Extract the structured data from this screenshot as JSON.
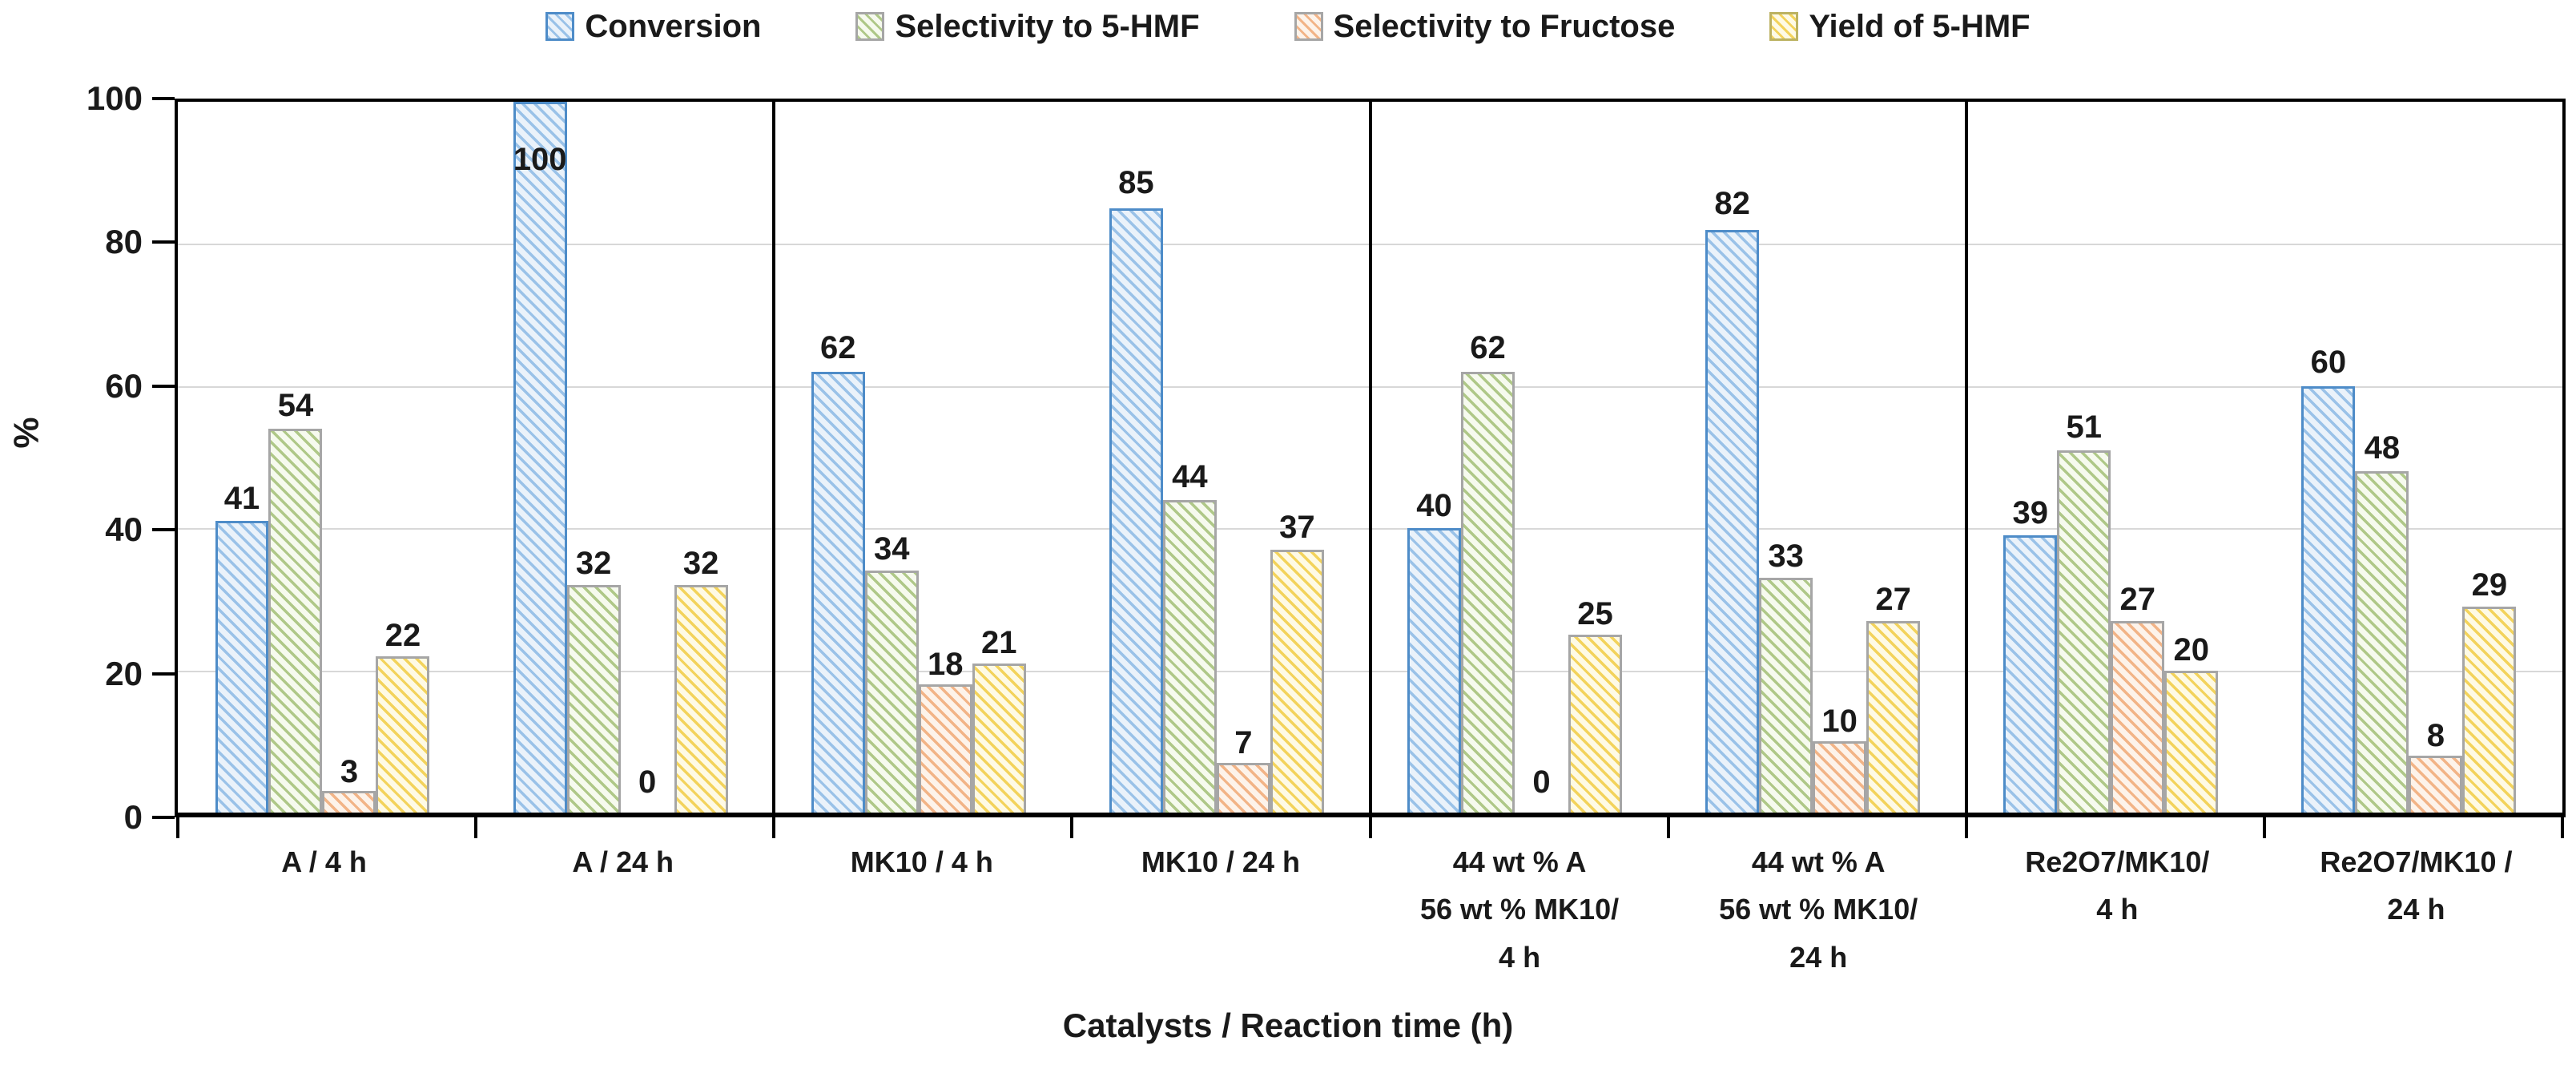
{
  "figure": {
    "background": "#FFFFFF",
    "text_color": "#1a1a1a",
    "gridline_color": "#D8D8D8",
    "axis_color": "#000000"
  },
  "chart_data": {
    "type": "bar",
    "title": "",
    "xlabel": "Catalysts / Reaction time (h)",
    "ylabel": "%",
    "ylim": [
      0,
      100
    ],
    "yticks": [
      0,
      20,
      40,
      60,
      80,
      100
    ],
    "grid": "horizontal",
    "legend_position": "top",
    "bar_value_labels_shown": true,
    "categories": [
      "A /  4 h",
      "A /  24 h",
      "MK10 /  4 h",
      "MK10 /  24 h",
      "44 wt % A\n56 wt % MK10/\n4 h",
      "44 wt % A\n56 wt % MK10/\n24 h",
      "Re2O7/MK10/\n4 h",
      "Re2O7/MK10 /\n24 h"
    ],
    "panel_dividers_after_categories": [
      2,
      4,
      6
    ],
    "series": [
      {
        "name": "Conversion",
        "values": [
          41,
          100,
          62,
          85,
          40,
          82,
          39,
          60
        ],
        "border": "#4E8CC8",
        "hatch": "#9AC2E8",
        "fill": "#EAF2FA"
      },
      {
        "name": "Selectivity to 5-HMF",
        "values": [
          54,
          32,
          34,
          44,
          62,
          33,
          51,
          48
        ],
        "border": "#A6A6A6",
        "hatch": "#AFC888",
        "fill": "#F6FAEE"
      },
      {
        "name": "Selectivity to Fructose",
        "values": [
          3,
          0,
          18,
          7,
          0,
          10,
          27,
          8
        ],
        "border": "#A6A6A6",
        "hatch": "#F2B487",
        "fill": "#FDF3EA"
      },
      {
        "name": "Yield of 5-HMF",
        "values": [
          22,
          32,
          21,
          37,
          25,
          27,
          20,
          29
        ],
        "border": "#A6A6A6",
        "legend_border": "#BCB261",
        "hatch": "#F3D35C",
        "fill": "#FEFAE5"
      }
    ]
  }
}
